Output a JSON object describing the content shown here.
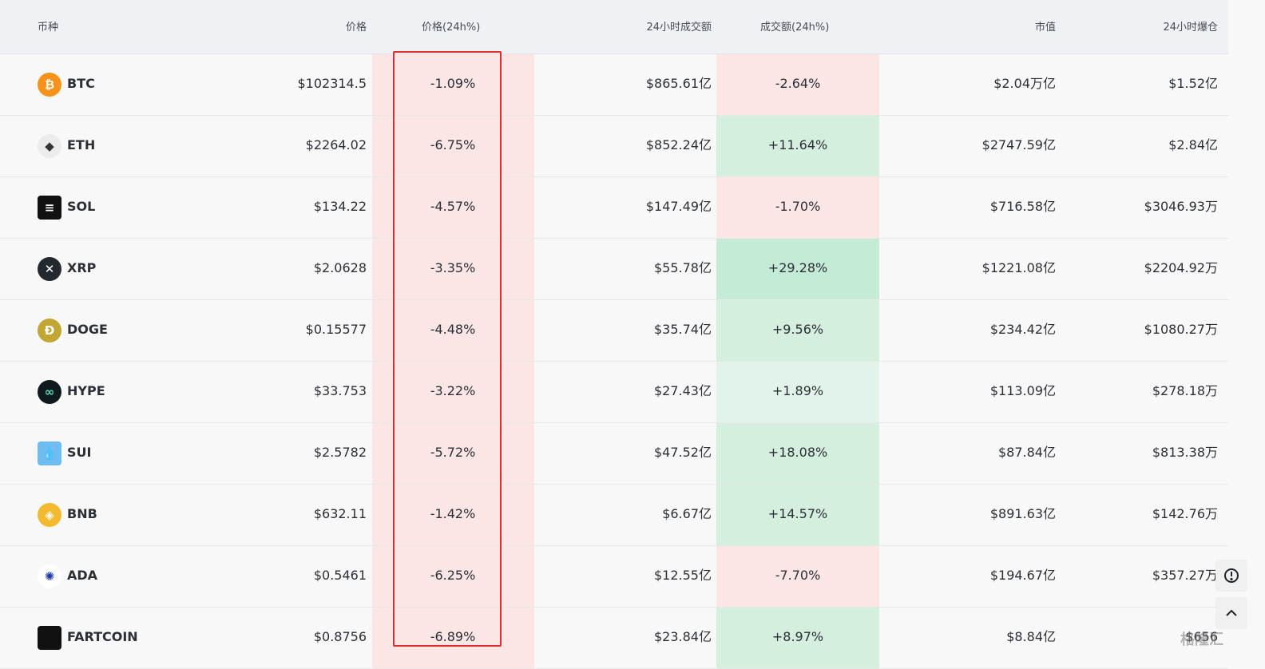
{
  "headers": {
    "coin": "币种",
    "price": "价格",
    "price_change": "价格(24h%)",
    "volume": "24小时成交额",
    "volume_change": "成交额(24h%)",
    "market_cap": "市值",
    "liquidation": "24小时爆仓"
  },
  "rows": [
    {
      "symbol": "BTC",
      "price": "$102314.5",
      "change": "-1.09%",
      "volume": "$865.61亿",
      "vol_change": "-2.64%",
      "vol_dir": "down",
      "mcap": "$2.04万亿",
      "liq": "$1.52亿",
      "icon": "bitcoin-icon",
      "icon_color": "#f7931a",
      "glyph": "₿"
    },
    {
      "symbol": "ETH",
      "price": "$2264.02",
      "change": "-6.75%",
      "volume": "$852.24亿",
      "vol_change": "+11.64%",
      "vol_dir": "up",
      "mcap": "$2747.59亿",
      "liq": "$2.84亿",
      "icon": "ethereum-icon",
      "icon_color": "#ececec",
      "glyph": "◆"
    },
    {
      "symbol": "SOL",
      "price": "$134.22",
      "change": "-4.57%",
      "volume": "$147.49亿",
      "vol_change": "-1.70%",
      "vol_dir": "down",
      "mcap": "$716.58亿",
      "liq": "$3046.93万",
      "icon": "solana-icon",
      "icon_color": "#111111",
      "glyph": "≡"
    },
    {
      "symbol": "XRP",
      "price": "$2.0628",
      "change": "-3.35%",
      "volume": "$55.78亿",
      "vol_change": "+29.28%",
      "vol_dir": "up-strong",
      "mcap": "$1221.08亿",
      "liq": "$2204.92万",
      "icon": "xrp-icon",
      "icon_color": "#23292f",
      "glyph": "✕"
    },
    {
      "symbol": "DOGE",
      "price": "$0.15577",
      "change": "-4.48%",
      "volume": "$35.74亿",
      "vol_change": "+9.56%",
      "vol_dir": "up",
      "mcap": "$234.42亿",
      "liq": "$1080.27万",
      "icon": "dogecoin-icon",
      "icon_color": "#c2a633",
      "glyph": "Ð"
    },
    {
      "symbol": "HYPE",
      "price": "$33.753",
      "change": "-3.22%",
      "volume": "$27.43亿",
      "vol_change": "+1.89%",
      "vol_dir": "up-light",
      "mcap": "$113.09亿",
      "liq": "$278.18万",
      "icon": "hyperliquid-icon",
      "icon_color": "#0f1a1f",
      "glyph": "∞"
    },
    {
      "symbol": "SUI",
      "price": "$2.5782",
      "change": "-5.72%",
      "volume": "$47.52亿",
      "vol_change": "+18.08%",
      "vol_dir": "up",
      "mcap": "$87.84亿",
      "liq": "$813.38万",
      "icon": "sui-icon",
      "icon_color": "#6fbcf0",
      "glyph": "💧"
    },
    {
      "symbol": "BNB",
      "price": "$632.11",
      "change": "-1.42%",
      "volume": "$6.67亿",
      "vol_change": "+14.57%",
      "vol_dir": "up",
      "mcap": "$891.63亿",
      "liq": "$142.76万",
      "icon": "bnb-icon",
      "icon_color": "#f3ba2f",
      "glyph": "◈"
    },
    {
      "symbol": "ADA",
      "price": "$0.5461",
      "change": "-6.25%",
      "volume": "$12.55亿",
      "vol_change": "-7.70%",
      "vol_dir": "down",
      "mcap": "$194.67亿",
      "liq": "$357.27万",
      "icon": "cardano-icon",
      "icon_color": "#ffffff",
      "glyph": "✺"
    },
    {
      "symbol": "FARTCOIN",
      "price": "$0.8756",
      "change": "-6.89%",
      "volume": "$23.84亿",
      "vol_change": "+8.97%",
      "vol_dir": "up",
      "mcap": "$8.84亿",
      "liq": "$656",
      "icon": "fartcoin-icon",
      "icon_color": "#111111",
      "glyph": ""
    }
  ],
  "colors": {
    "down_bg": "#fbe5e5",
    "up_bg": "#d5efdf",
    "up_strong_bg": "#c4ebd6",
    "up_light_bg": "#e2f4e9",
    "highlight_box": "#e0302d"
  },
  "watermark": "格隆汇",
  "side_buttons": [
    "settings-icon",
    "scroll-top-icon"
  ]
}
